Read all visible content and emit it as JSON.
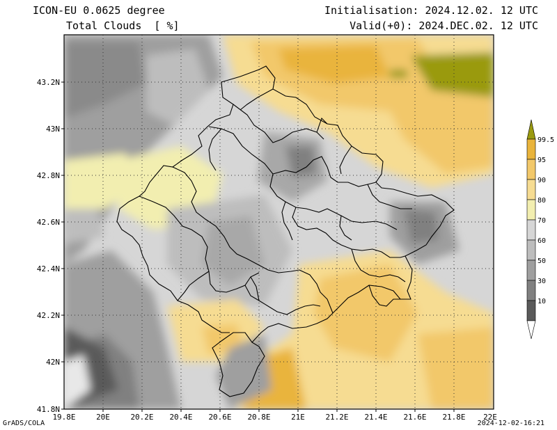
{
  "header": {
    "model": "ICON-EU 0.0625 degree",
    "field": "Total Clouds  [ %]",
    "init": "Initialisation: 2024.12.02. 12 UTC",
    "valid": "Valid(+0): 2024.DEC.02. 12 UTC"
  },
  "axes": {
    "lat_labels": [
      "43.2N",
      "43N",
      "42.8N",
      "42.6N",
      "42.4N",
      "42.2N",
      "42N",
      "41.8N"
    ],
    "lon_labels": [
      "19.8E",
      "20E",
      "20.2E",
      "20.4E",
      "20.6E",
      "20.8E",
      "21E",
      "21.2E",
      "21.4E",
      "21.6E",
      "21.8E",
      "22E"
    ]
  },
  "colorbar": {
    "labels": [
      "99.5",
      "95",
      "90",
      "80",
      "70",
      "60",
      "50",
      "30",
      "10"
    ],
    "colors": [
      "#9a9a10",
      "#e9b43c",
      "#f2c86a",
      "#f6dc92",
      "#f2eeb0",
      "#d6d6d6",
      "#bdbdbd",
      "#9f9f9f",
      "#808080",
      "#5a5a5a",
      "#ffffff"
    ]
  },
  "footer": {
    "credit": "GrADS/COLA",
    "stamp": "2024-12-02-16:21"
  }
}
